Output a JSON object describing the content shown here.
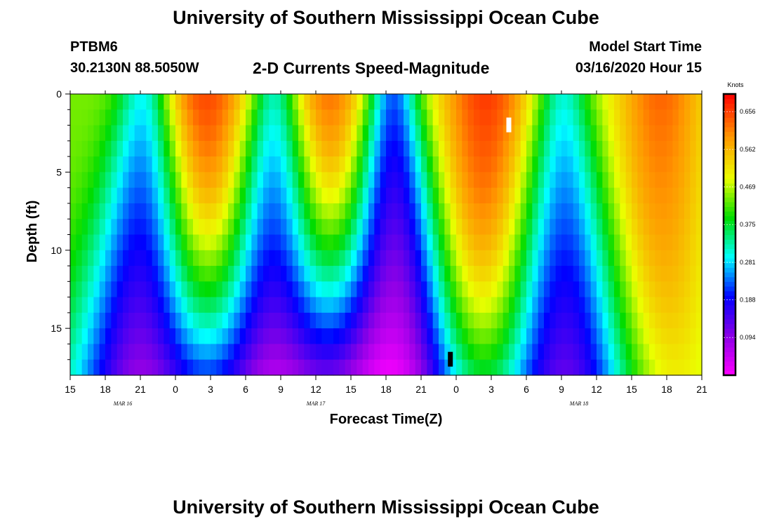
{
  "header": {
    "title": "University of Southern Mississippi Ocean Cube",
    "station": "PTBM6",
    "coords": "30.2130N 88.5050W",
    "chart_title": "2-D Currents Speed-Magnitude",
    "start_label": "Model Start Time",
    "start_value": "03/16/2020 Hour 15"
  },
  "footer": {
    "title": "University of Southern Mississippi Ocean Cube"
  },
  "chart_data": {
    "type": "heatmap",
    "title": "2-D Currents Speed-Magnitude",
    "xlabel": "Forecast Time(Z)",
    "ylabel": "Depth (ft)",
    "x_range_hours": [
      0,
      54
    ],
    "y_range_ft": [
      0,
      18
    ],
    "x_tick_labels": [
      "15",
      "18",
      "21",
      "0",
      "3",
      "6",
      "9",
      "12",
      "15",
      "18",
      "21",
      "0",
      "3",
      "6",
      "9",
      "12",
      "15",
      "18",
      "21"
    ],
    "y_ticks": [
      0,
      5,
      10,
      15
    ],
    "y_tick_labels": [
      "0",
      "5",
      "10",
      "15"
    ],
    "date_labels": [
      {
        "text": "MAR 16",
        "hour": 4.5
      },
      {
        "text": "MAR 17",
        "hour": 21
      },
      {
        "text": "MAR 18",
        "hour": 43.5
      }
    ],
    "colorbar": {
      "unit": "Knots",
      "min": 0.0,
      "max": 0.7,
      "tick_values": [
        0.656,
        0.562,
        0.469,
        0.375,
        0.281,
        0.188,
        0.094
      ],
      "tick_labels": [
        "0.656",
        "0.562",
        "0.469",
        "0.375",
        "0.281",
        "0.188",
        "0.094"
      ]
    },
    "speed_profile": {
      "description": "Surface speed (knots) vs forecast hour; speeds decay with depth in fast lobes and minima widen with depth",
      "peak_hours": [
        1.0,
        11.5,
        22.0,
        35.5,
        50.5
      ],
      "min_hours": [
        6.5,
        17.5,
        27.5,
        42.0
      ],
      "surface_peaks": [
        0.44,
        0.65,
        0.62,
        0.66,
        0.63
      ],
      "surface_mins": [
        0.24,
        0.22,
        0.18,
        0.28
      ]
    },
    "markers": [
      {
        "hour": 37.5,
        "depth_ft": 2.0,
        "color": "#ffffff"
      },
      {
        "hour": 32.5,
        "depth_ft": 17.0,
        "color": "#000000"
      }
    ]
  }
}
